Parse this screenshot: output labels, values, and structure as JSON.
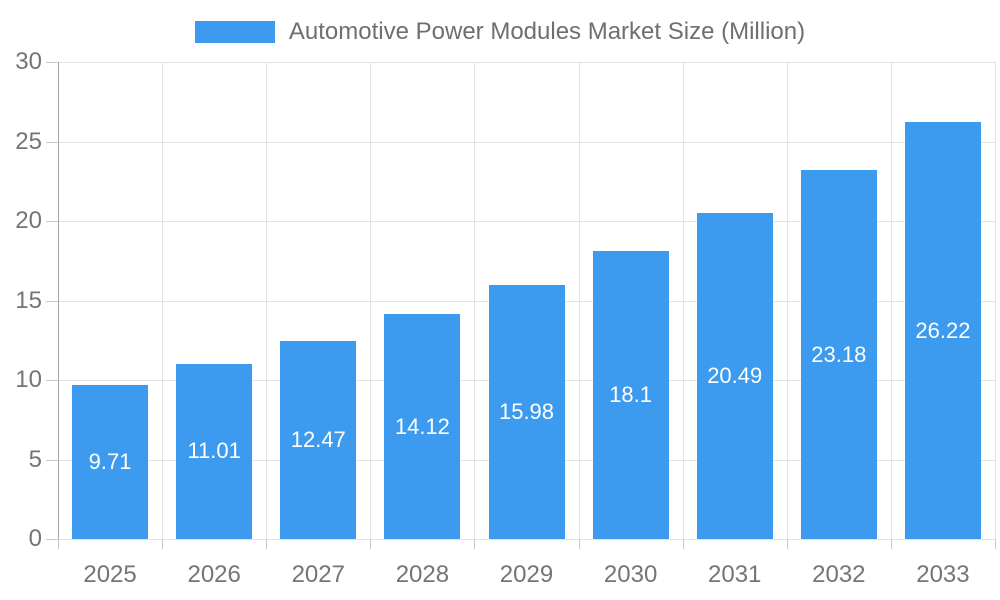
{
  "chart_data": {
    "type": "bar",
    "title": "Automotive Power Modules Market Size (Million)",
    "legend": [
      {
        "label": "Automotive Power Modules Market Size (Million)",
        "color": "#3C9AEF"
      }
    ],
    "legend_position": "top-center",
    "categories": [
      "2025",
      "2026",
      "2027",
      "2028",
      "2029",
      "2030",
      "2031",
      "2032",
      "2033"
    ],
    "series": [
      {
        "name": "Automotive Power Modules Market Size (Million)",
        "values": [
          9.71,
          11.01,
          12.47,
          14.12,
          15.98,
          18.1,
          20.49,
          23.18,
          26.22
        ]
      }
    ],
    "value_labels": [
      "9.71",
      "11.01",
      "12.47",
      "14.12",
      "15.98",
      "18.1",
      "20.49",
      "23.18",
      "26.22"
    ],
    "value_label_position": "inside-center",
    "xlabel": "",
    "ylabel": "",
    "ylim": [
      0,
      30
    ],
    "yticks": [
      "0",
      "5",
      "10",
      "15",
      "20",
      "25",
      "30"
    ],
    "grid": "horizontal and vertical, light gray",
    "colors": {
      "bar": "#3C9AEF",
      "value_label": "#FFFFFF",
      "axis_text": "#757575",
      "legend_text": "#6F6F6F",
      "gridline": "#E4E4E4",
      "axis_line": "#A6A6A6",
      "tick": "#C9C9C9",
      "background": "#FFFFFF"
    }
  }
}
